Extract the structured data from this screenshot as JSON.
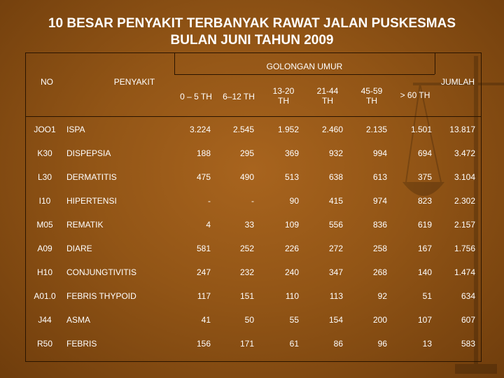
{
  "title_line1": "10 BESAR PENYAKIT TERBANYAK RAWAT JALAN PUSKESMAS",
  "title_line2": "BULAN JUNI TAHUN 2009",
  "headers": {
    "golongan_umur": "GOLONGAN UMUR",
    "no": "NO",
    "penyakit": "PENYAKIT",
    "jumlah": "JUMLAH",
    "age_cols": [
      "0 – 5 TH",
      "6–12 TH",
      "13-20\nTH",
      "21-44\nTH",
      "45-59\nTH",
      "> 60 TH"
    ]
  },
  "rows": [
    {
      "code": "JOO1",
      "name": "ISPA",
      "v": [
        "3.224",
        "2.545",
        "1.952",
        "2.460",
        "2.135",
        "1.501",
        "13.817"
      ]
    },
    {
      "code": "K30",
      "name": "DISPEPSIA",
      "v": [
        "188",
        "295",
        "369",
        "932",
        "994",
        "694",
        "3.472"
      ]
    },
    {
      "code": "L30",
      "name": "DERMATITIS",
      "v": [
        "475",
        "490",
        "513",
        "638",
        "613",
        "375",
        "3.104"
      ]
    },
    {
      "code": "I10",
      "name": "HIPERTENSI",
      "v": [
        "-",
        "-",
        "90",
        "415",
        "974",
        "823",
        "2.302"
      ]
    },
    {
      "code": "M05",
      "name": "REMATIK",
      "v": [
        "4",
        "33",
        "109",
        "556",
        "836",
        "619",
        "2.157"
      ]
    },
    {
      "code": "A09",
      "name": "DIARE",
      "v": [
        "581",
        "252",
        "226",
        "272",
        "258",
        "167",
        "1.756"
      ]
    },
    {
      "code": "H10",
      "name": "CONJUNGTIVITIS",
      "v": [
        "247",
        "232",
        "240",
        "347",
        "268",
        "140",
        "1.474"
      ]
    },
    {
      "code": "A01.0",
      "name": "FEBRIS THYPOID",
      "v": [
        "117",
        "151",
        "110",
        "113",
        "92",
        "51",
        "634"
      ]
    },
    {
      "code": "J44",
      "name": "ASMA",
      "v": [
        "41",
        "50",
        "55",
        "154",
        "200",
        "107",
        "607"
      ]
    },
    {
      "code": "R50",
      "name": "FEBRIS",
      "v": [
        "156",
        "171",
        "61",
        "86",
        "96",
        "13",
        "583"
      ]
    }
  ]
}
